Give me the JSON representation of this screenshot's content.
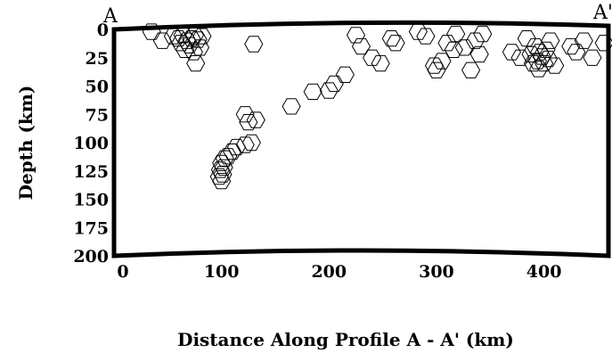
{
  "chart_data": {
    "type": "scatter",
    "xlabel": "Distance Along Profile A - A' (km)",
    "ylabel": "Depth (km)",
    "profile_start_label": "A",
    "profile_end_label": "A'",
    "xlim": [
      0,
      460
    ],
    "ylim": [
      200,
      0
    ],
    "y_inverted": true,
    "x_ticks": [
      0,
      100,
      200,
      300,
      400
    ],
    "y_ticks": [
      0,
      25,
      50,
      75,
      100,
      125,
      150,
      175,
      200
    ],
    "grid": false,
    "marker": "hexagon",
    "points": [
      {
        "x": 35,
        "y": 2
      },
      {
        "x": 45,
        "y": 10
      },
      {
        "x": 55,
        "y": 6
      },
      {
        "x": 60,
        "y": 8
      },
      {
        "x": 62,
        "y": 12
      },
      {
        "x": 64,
        "y": 5
      },
      {
        "x": 66,
        "y": 18
      },
      {
        "x": 68,
        "y": 10
      },
      {
        "x": 70,
        "y": 14
      },
      {
        "x": 72,
        "y": 8
      },
      {
        "x": 74,
        "y": 20
      },
      {
        "x": 75,
        "y": 5
      },
      {
        "x": 78,
        "y": 9
      },
      {
        "x": 80,
        "y": 16
      },
      {
        "x": 82,
        "y": 6
      },
      {
        "x": 76,
        "y": 30
      },
      {
        "x": 130,
        "y": 13
      },
      {
        "x": 165,
        "y": 68
      },
      {
        "x": 185,
        "y": 55
      },
      {
        "x": 200,
        "y": 54
      },
      {
        "x": 205,
        "y": 48
      },
      {
        "x": 215,
        "y": 40
      },
      {
        "x": 225,
        "y": 5
      },
      {
        "x": 230,
        "y": 15
      },
      {
        "x": 240,
        "y": 25
      },
      {
        "x": 248,
        "y": 30
      },
      {
        "x": 258,
        "y": 8
      },
      {
        "x": 122,
        "y": 75
      },
      {
        "x": 125,
        "y": 82
      },
      {
        "x": 132,
        "y": 80
      },
      {
        "x": 128,
        "y": 100
      },
      {
        "x": 122,
        "y": 102
      },
      {
        "x": 114,
        "y": 104
      },
      {
        "x": 110,
        "y": 108
      },
      {
        "x": 106,
        "y": 112
      },
      {
        "x": 103,
        "y": 114
      },
      {
        "x": 100,
        "y": 118
      },
      {
        "x": 102,
        "y": 122
      },
      {
        "x": 99,
        "y": 124
      },
      {
        "x": 101,
        "y": 128
      },
      {
        "x": 98,
        "y": 130
      },
      {
        "x": 100,
        "y": 134
      },
      {
        "x": 262,
        "y": 12
      },
      {
        "x": 283,
        "y": 2
      },
      {
        "x": 290,
        "y": 6
      },
      {
        "x": 298,
        "y": 32
      },
      {
        "x": 300,
        "y": 36
      },
      {
        "x": 305,
        "y": 28
      },
      {
        "x": 310,
        "y": 12
      },
      {
        "x": 316,
        "y": 18
      },
      {
        "x": 318,
        "y": 4
      },
      {
        "x": 326,
        "y": 16
      },
      {
        "x": 332,
        "y": 36
      },
      {
        "x": 336,
        "y": 10
      },
      {
        "x": 340,
        "y": 22
      },
      {
        "x": 343,
        "y": 4
      },
      {
        "x": 370,
        "y": 20
      },
      {
        "x": 378,
        "y": 25
      },
      {
        "x": 384,
        "y": 8
      },
      {
        "x": 388,
        "y": 22
      },
      {
        "x": 390,
        "y": 30
      },
      {
        "x": 392,
        "y": 15
      },
      {
        "x": 394,
        "y": 28
      },
      {
        "x": 395,
        "y": 35
      },
      {
        "x": 396,
        "y": 20
      },
      {
        "x": 398,
        "y": 24
      },
      {
        "x": 400,
        "y": 30
      },
      {
        "x": 402,
        "y": 18
      },
      {
        "x": 404,
        "y": 26
      },
      {
        "x": 406,
        "y": 10
      },
      {
        "x": 410,
        "y": 32
      },
      {
        "x": 425,
        "y": 15
      },
      {
        "x": 430,
        "y": 20
      },
      {
        "x": 437,
        "y": 10
      },
      {
        "x": 445,
        "y": 25
      },
      {
        "x": 456,
        "y": 12
      }
    ]
  }
}
